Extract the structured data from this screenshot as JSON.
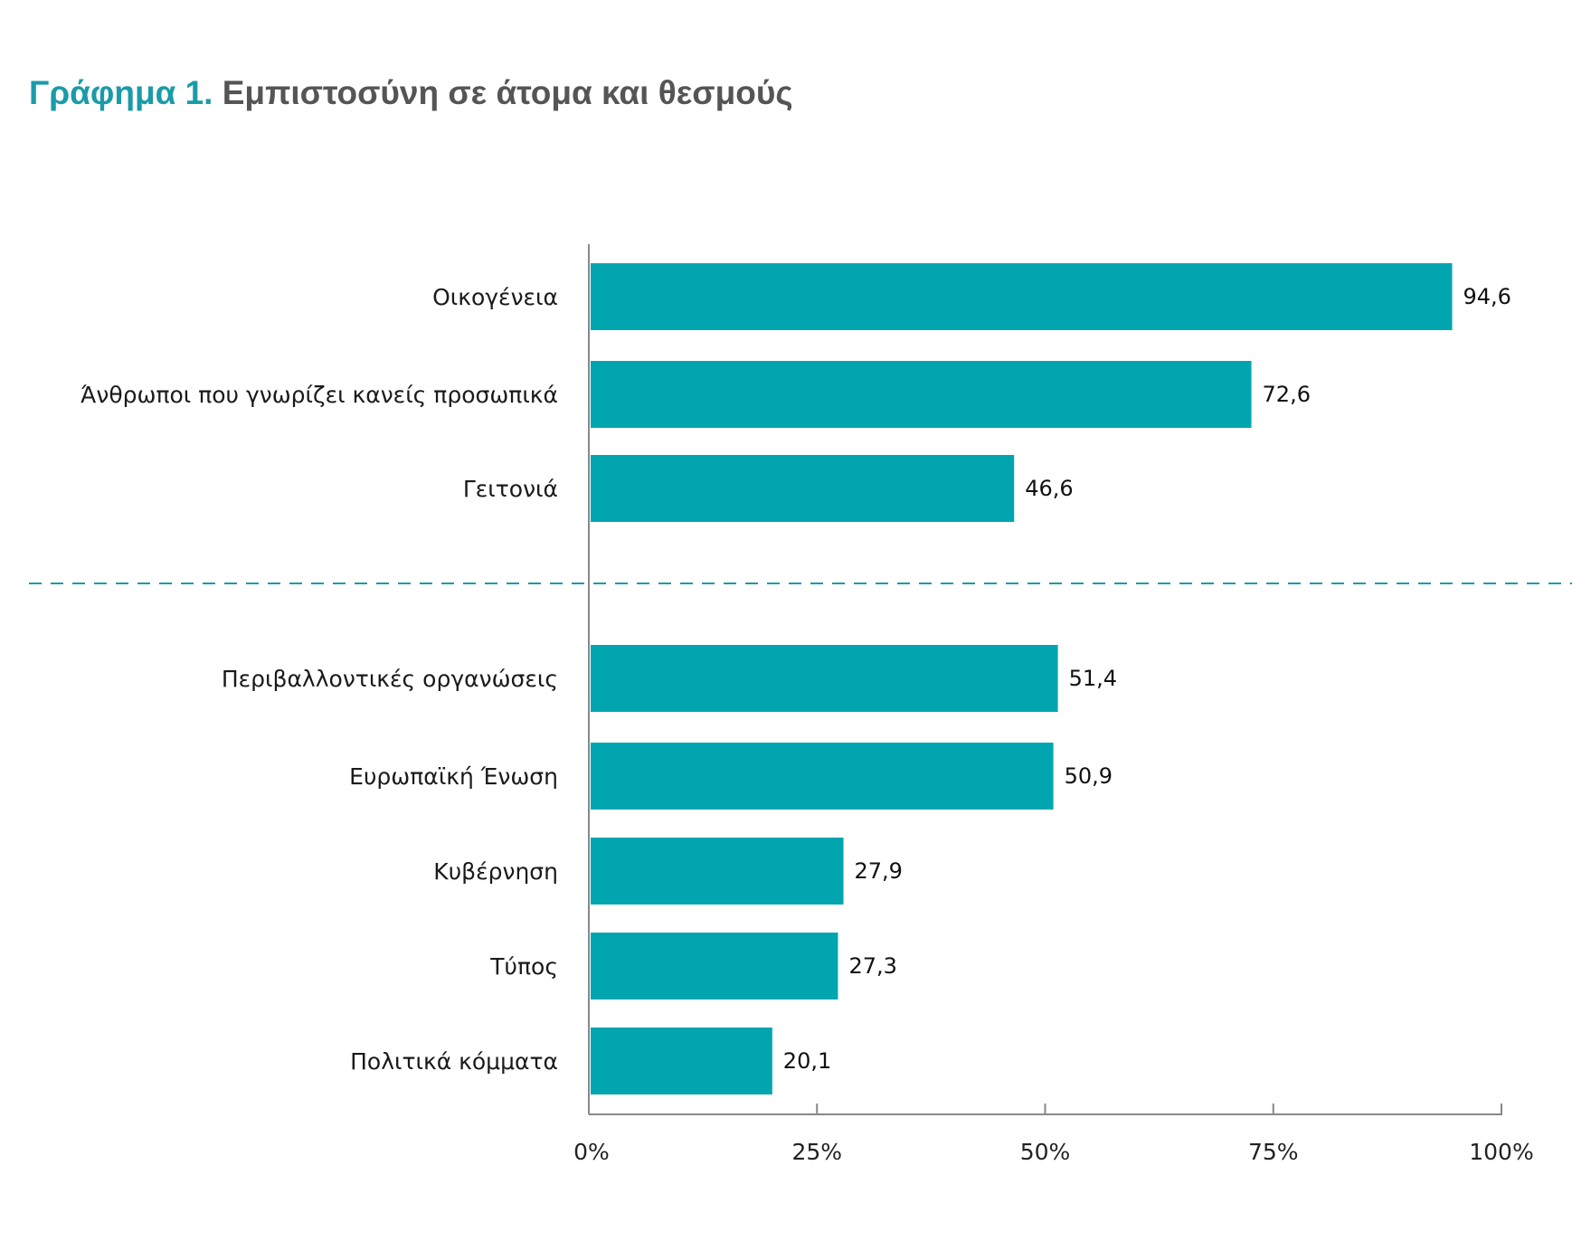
{
  "title": {
    "prefix": "Γράφημα 1.",
    "text": "Εμπιστοσύνη σε άτομα και θεσμούς"
  },
  "colors": {
    "bar": "#00a5b0",
    "title_accent": "#1a9ba8",
    "title_text": "#555555",
    "separator": "#1a9ba8",
    "axis": "#888888"
  },
  "chart_data": {
    "type": "bar",
    "orientation": "horizontal",
    "title": "Εμπιστοσύνη σε άτομα και θεσμούς",
    "groups": [
      {
        "categories": [
          "Οικογένεια",
          "Άνθρωποι που γνωρίζει κανείς προσωπικά",
          "Γειτονιά"
        ],
        "values": [
          94.6,
          72.6,
          46.6
        ],
        "value_labels": [
          "94,6",
          "72,6",
          "46,6"
        ]
      },
      {
        "categories": [
          "Περιβαλλοντικές οργανώσεις",
          "Ευρωπαϊκή Ένωση",
          "Κυβέρνηση",
          "Τύπος",
          "Πολιτικά κόμματα"
        ],
        "values": [
          51.4,
          50.9,
          27.9,
          27.3,
          20.1
        ],
        "value_labels": [
          "51,4",
          "50,9",
          "27,9",
          "27,3",
          "20,1"
        ]
      }
    ],
    "xlim": [
      0,
      100
    ],
    "xticks": [
      0,
      25,
      50,
      75,
      100
    ],
    "xtick_labels": [
      "0%",
      "25%",
      "50%",
      "75%",
      "100%"
    ],
    "grid": false,
    "separator": "dashed line between groups"
  }
}
